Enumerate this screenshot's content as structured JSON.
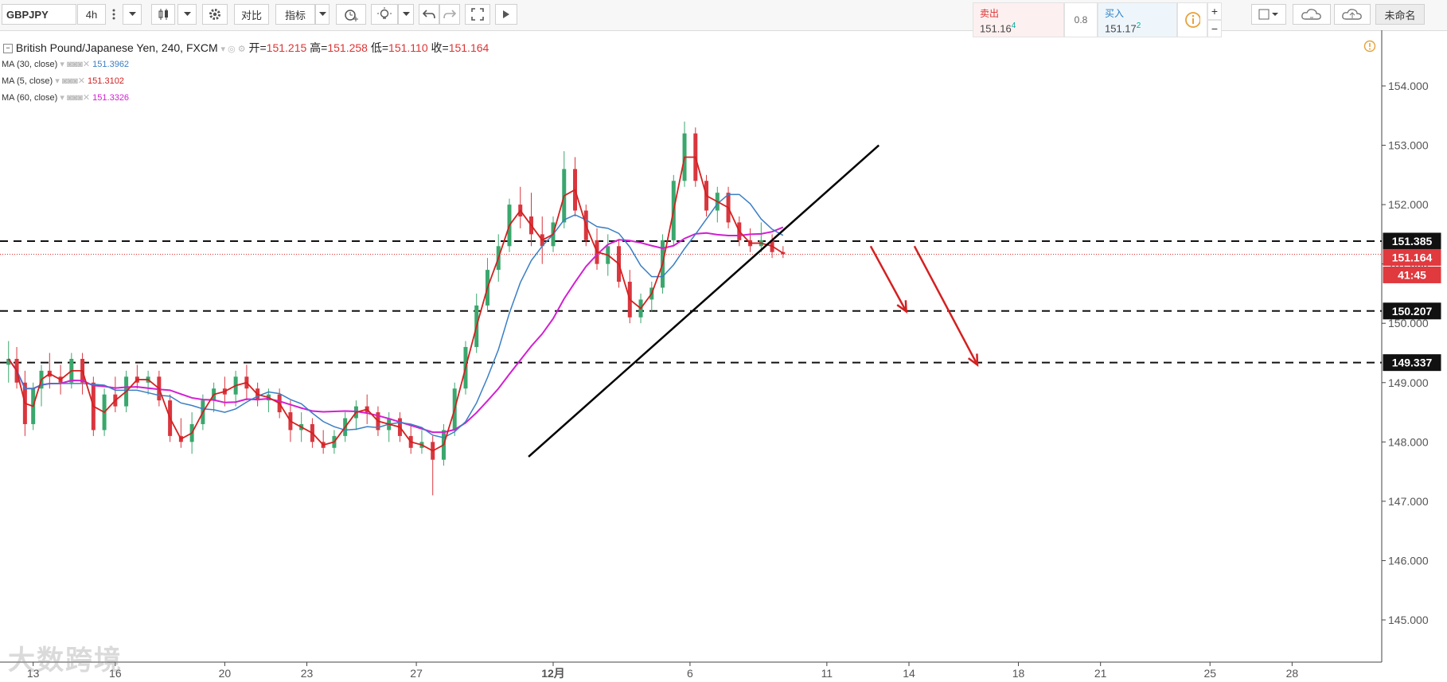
{
  "toolbar": {
    "symbol": "GBPJPY",
    "interval": "4h",
    "compare_label": "对比",
    "indicators_label": "指标",
    "unnamed_label": "未命名"
  },
  "trade": {
    "sell_label": "卖出",
    "sell_price": "151.16",
    "sell_pip": "4",
    "spread": "0.8",
    "buy_label": "买入",
    "buy_price": "151.17",
    "buy_pip": "2"
  },
  "legend": {
    "title": "British Pound/Japanese Yen, 240, FXCM",
    "open_label": "开=",
    "open": "151.215",
    "high_label": "高=",
    "high": "151.258",
    "low_label": "低=",
    "low": "151.110",
    "close_label": "收=",
    "close": "151.164",
    "ma": [
      {
        "label": "MA (30, close)",
        "value": "151.3962",
        "color": "#3a7fc4"
      },
      {
        "label": "MA (5, close)",
        "value": "151.3102",
        "color": "#d42020"
      },
      {
        "label": "MA (60, close)",
        "value": "151.3326",
        "color": "#d21fd2"
      }
    ]
  },
  "price_tags": {
    "level_1": "151.385",
    "current": "151.164",
    "countdown": "41:45",
    "level_2": "150.207",
    "level_3": "149.337"
  },
  "watermark": "大数跨境",
  "colors": {
    "up": "#3aa76d",
    "down": "#d9363e",
    "ma30": "#3a7fc4",
    "ma5": "#d42020",
    "ma60": "#d21fd2",
    "arrow": "#d42020"
  },
  "chart_data": {
    "type": "candlestick",
    "title": "British Pound/Japanese Yen, 240, FXCM",
    "ylim": [
      144.3,
      154.6
    ],
    "y_ticks": [
      "145.000",
      "146.000",
      "147.000",
      "148.000",
      "149.000",
      "150.000",
      "151.000",
      "152.000",
      "153.000",
      "154.000"
    ],
    "x_ticks": [
      "13",
      "16",
      "20",
      "23",
      "27",
      "12月",
      "6",
      "11",
      "14",
      "18",
      "21",
      "25",
      "28"
    ],
    "x_tick_days": [
      -18,
      -15,
      -11,
      -8,
      -4,
      1,
      6,
      11,
      14,
      18,
      21,
      25,
      28
    ],
    "horizontal_levels": [
      151.385,
      150.207,
      149.337
    ],
    "current_price": 151.164,
    "trendline": {
      "from": {
        "day": 0.1,
        "price": 147.75
      },
      "to": {
        "day": 12.9,
        "price": 153.0
      }
    },
    "arrows": [
      {
        "from": {
          "day": 12.6,
          "price": 151.3
        },
        "to": {
          "day": 13.9,
          "price": 150.2
        }
      },
      {
        "from": {
          "day": 14.2,
          "price": 151.3
        },
        "to": {
          "day": 16.5,
          "price": 149.3
        }
      }
    ],
    "candles": [
      {
        "day": -18.9,
        "o": 149.3,
        "h": 149.7,
        "l": 149.0,
        "c": 149.4
      },
      {
        "day": -18.6,
        "o": 149.4,
        "h": 149.6,
        "l": 148.9,
        "c": 149.0
      },
      {
        "day": -18.3,
        "o": 149.0,
        "h": 149.2,
        "l": 148.1,
        "c": 148.3
      },
      {
        "day": -18.0,
        "o": 148.3,
        "h": 149.0,
        "l": 148.2,
        "c": 148.9
      },
      {
        "day": -17.7,
        "o": 148.9,
        "h": 149.3,
        "l": 148.6,
        "c": 149.2
      },
      {
        "day": -17.4,
        "o": 149.2,
        "h": 149.5,
        "l": 148.9,
        "c": 149.1
      },
      {
        "day": -17.0,
        "o": 149.1,
        "h": 149.3,
        "l": 148.8,
        "c": 149.0
      },
      {
        "day": -16.6,
        "o": 149.0,
        "h": 149.5,
        "l": 148.9,
        "c": 149.4
      },
      {
        "day": -16.2,
        "o": 149.4,
        "h": 149.5,
        "l": 148.8,
        "c": 149.0
      },
      {
        "day": -15.8,
        "o": 149.0,
        "h": 149.1,
        "l": 148.1,
        "c": 148.2
      },
      {
        "day": -15.4,
        "o": 148.2,
        "h": 148.9,
        "l": 148.1,
        "c": 148.8
      },
      {
        "day": -15.0,
        "o": 148.8,
        "h": 149.1,
        "l": 148.5,
        "c": 148.6
      },
      {
        "day": -14.6,
        "o": 148.6,
        "h": 149.2,
        "l": 148.5,
        "c": 149.1
      },
      {
        "day": -14.2,
        "o": 149.1,
        "h": 149.3,
        "l": 148.9,
        "c": 149.0
      },
      {
        "day": -13.8,
        "o": 149.0,
        "h": 149.2,
        "l": 148.8,
        "c": 149.1
      },
      {
        "day": -13.4,
        "o": 149.1,
        "h": 149.2,
        "l": 148.6,
        "c": 148.7
      },
      {
        "day": -13.0,
        "o": 148.7,
        "h": 148.8,
        "l": 148.0,
        "c": 148.1
      },
      {
        "day": -12.6,
        "o": 148.1,
        "h": 148.4,
        "l": 147.9,
        "c": 148.0
      },
      {
        "day": -12.2,
        "o": 148.0,
        "h": 148.5,
        "l": 147.8,
        "c": 148.3
      },
      {
        "day": -11.8,
        "o": 148.3,
        "h": 148.8,
        "l": 148.2,
        "c": 148.7
      },
      {
        "day": -11.4,
        "o": 148.7,
        "h": 149.0,
        "l": 148.5,
        "c": 148.9
      },
      {
        "day": -11.0,
        "o": 148.9,
        "h": 149.1,
        "l": 148.6,
        "c": 148.8
      },
      {
        "day": -10.6,
        "o": 148.8,
        "h": 149.2,
        "l": 148.6,
        "c": 149.1
      },
      {
        "day": -10.2,
        "o": 149.1,
        "h": 149.3,
        "l": 148.7,
        "c": 148.9
      },
      {
        "day": -9.8,
        "o": 148.9,
        "h": 149.0,
        "l": 148.6,
        "c": 148.7
      },
      {
        "day": -9.4,
        "o": 148.7,
        "h": 148.9,
        "l": 148.5,
        "c": 148.8
      },
      {
        "day": -9.0,
        "o": 148.8,
        "h": 148.9,
        "l": 148.4,
        "c": 148.5
      },
      {
        "day": -8.6,
        "o": 148.5,
        "h": 148.7,
        "l": 148.0,
        "c": 148.2
      },
      {
        "day": -8.2,
        "o": 148.2,
        "h": 148.5,
        "l": 148.0,
        "c": 148.3
      },
      {
        "day": -7.8,
        "o": 148.3,
        "h": 148.4,
        "l": 147.9,
        "c": 148.0
      },
      {
        "day": -7.4,
        "o": 148.0,
        "h": 148.2,
        "l": 147.8,
        "c": 147.9
      },
      {
        "day": -7.0,
        "o": 147.9,
        "h": 148.2,
        "l": 147.8,
        "c": 148.1
      },
      {
        "day": -6.6,
        "o": 148.1,
        "h": 148.5,
        "l": 148.0,
        "c": 148.4
      },
      {
        "day": -6.2,
        "o": 148.4,
        "h": 148.7,
        "l": 148.2,
        "c": 148.6
      },
      {
        "day": -5.8,
        "o": 148.6,
        "h": 148.8,
        "l": 148.3,
        "c": 148.5
      },
      {
        "day": -5.4,
        "o": 148.5,
        "h": 148.6,
        "l": 148.1,
        "c": 148.2
      },
      {
        "day": -5.0,
        "o": 148.2,
        "h": 148.5,
        "l": 148.0,
        "c": 148.4
      },
      {
        "day": -4.6,
        "o": 148.4,
        "h": 148.5,
        "l": 148.0,
        "c": 148.1
      },
      {
        "day": -4.2,
        "o": 148.1,
        "h": 148.3,
        "l": 147.8,
        "c": 147.9
      },
      {
        "day": -3.8,
        "o": 147.9,
        "h": 148.2,
        "l": 147.8,
        "c": 148.0
      },
      {
        "day": -3.4,
        "o": 148.0,
        "h": 148.1,
        "l": 147.1,
        "c": 147.7
      },
      {
        "day": -3.0,
        "o": 147.7,
        "h": 148.3,
        "l": 147.6,
        "c": 148.2
      },
      {
        "day": -2.6,
        "o": 148.2,
        "h": 149.0,
        "l": 148.1,
        "c": 148.9
      },
      {
        "day": -2.2,
        "o": 148.9,
        "h": 149.7,
        "l": 148.8,
        "c": 149.6
      },
      {
        "day": -1.8,
        "o": 149.6,
        "h": 150.5,
        "l": 149.5,
        "c": 150.3
      },
      {
        "day": -1.4,
        "o": 150.3,
        "h": 151.1,
        "l": 150.2,
        "c": 150.9
      },
      {
        "day": -1.0,
        "o": 150.9,
        "h": 151.5,
        "l": 150.7,
        "c": 151.3
      },
      {
        "day": -0.6,
        "o": 151.3,
        "h": 152.1,
        "l": 151.2,
        "c": 152.0
      },
      {
        "day": -0.2,
        "o": 152.0,
        "h": 152.3,
        "l": 151.6,
        "c": 151.8
      },
      {
        "day": 0.2,
        "o": 151.8,
        "h": 152.2,
        "l": 151.3,
        "c": 151.5
      },
      {
        "day": 0.6,
        "o": 151.5,
        "h": 151.8,
        "l": 151.0,
        "c": 151.3
      },
      {
        "day": 1.0,
        "o": 151.3,
        "h": 151.8,
        "l": 151.2,
        "c": 151.7
      },
      {
        "day": 1.4,
        "o": 151.7,
        "h": 152.9,
        "l": 151.6,
        "c": 152.6
      },
      {
        "day": 1.8,
        "o": 152.6,
        "h": 152.8,
        "l": 151.8,
        "c": 151.9
      },
      {
        "day": 2.2,
        "o": 151.9,
        "h": 152.0,
        "l": 151.3,
        "c": 151.4
      },
      {
        "day": 2.6,
        "o": 151.4,
        "h": 151.6,
        "l": 150.9,
        "c": 151.0
      },
      {
        "day": 3.0,
        "o": 151.0,
        "h": 151.5,
        "l": 150.8,
        "c": 151.3
      },
      {
        "day": 3.4,
        "o": 151.3,
        "h": 151.4,
        "l": 150.6,
        "c": 150.7
      },
      {
        "day": 3.8,
        "o": 150.7,
        "h": 150.9,
        "l": 150.0,
        "c": 150.1
      },
      {
        "day": 4.2,
        "o": 150.1,
        "h": 150.5,
        "l": 150.0,
        "c": 150.4
      },
      {
        "day": 4.6,
        "o": 150.4,
        "h": 150.7,
        "l": 150.2,
        "c": 150.6
      },
      {
        "day": 5.0,
        "o": 150.6,
        "h": 151.5,
        "l": 150.5,
        "c": 151.4
      },
      {
        "day": 5.4,
        "o": 151.4,
        "h": 152.5,
        "l": 151.3,
        "c": 152.4
      },
      {
        "day": 5.8,
        "o": 152.4,
        "h": 153.4,
        "l": 152.3,
        "c": 153.2
      },
      {
        "day": 6.2,
        "o": 153.2,
        "h": 153.3,
        "l": 152.3,
        "c": 152.4
      },
      {
        "day": 6.6,
        "o": 152.4,
        "h": 152.5,
        "l": 151.8,
        "c": 151.9
      },
      {
        "day": 7.0,
        "o": 151.9,
        "h": 152.3,
        "l": 151.7,
        "c": 152.2
      },
      {
        "day": 7.4,
        "o": 152.2,
        "h": 152.3,
        "l": 151.6,
        "c": 151.7
      },
      {
        "day": 7.8,
        "o": 151.7,
        "h": 151.8,
        "l": 151.3,
        "c": 151.4
      },
      {
        "day": 8.2,
        "o": 151.4,
        "h": 151.6,
        "l": 151.2,
        "c": 151.3
      },
      {
        "day": 8.6,
        "o": 151.3,
        "h": 151.7,
        "l": 151.2,
        "c": 151.4
      },
      {
        "day": 9.0,
        "o": 151.4,
        "h": 151.5,
        "l": 151.1,
        "c": 151.2
      },
      {
        "day": 9.4,
        "o": 151.2,
        "h": 151.3,
        "l": 151.1,
        "c": 151.164
      }
    ]
  }
}
